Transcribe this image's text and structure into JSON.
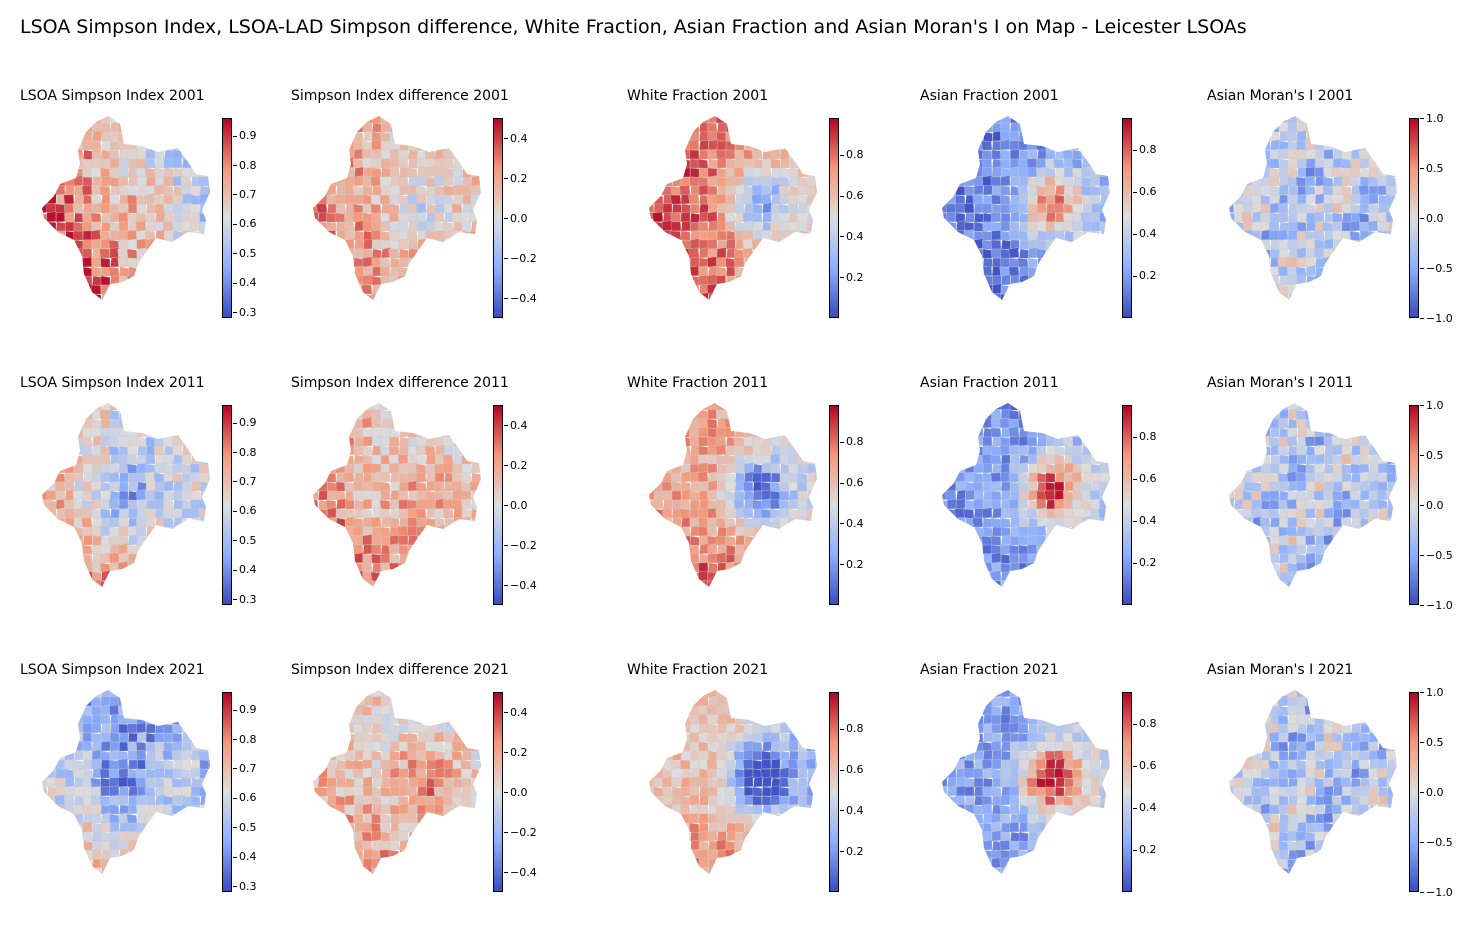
{
  "title": "LSOA Simpson Index, LSOA-LAD Simpson difference, White Fraction, Asian Fraction and Asian Moran's I on Map - Leicester LSOAs",
  "colormap": {
    "name": "coolwarm",
    "low": "#3b4cc0",
    "mid": "#dddddd",
    "high": "#b40426"
  },
  "columns": [
    {
      "key": "simpson",
      "title_prefix": "LSOA Simpson Index",
      "range": [
        0.28,
        0.96
      ],
      "ticks": [
        "0.3",
        "0.4",
        "0.5",
        "0.6",
        "0.7",
        "0.8",
        "0.9"
      ],
      "tick_values": [
        0.3,
        0.4,
        0.5,
        0.6,
        0.7,
        0.8,
        0.9
      ]
    },
    {
      "key": "simpson_diff",
      "title_prefix": "Simpson Index difference",
      "range": [
        -0.5,
        0.5
      ],
      "ticks": [
        "−0.4",
        "−0.2",
        "0.0",
        "0.2",
        "0.4"
      ],
      "tick_values": [
        -0.4,
        -0.2,
        0.0,
        0.2,
        0.4
      ]
    },
    {
      "key": "white_frac",
      "title_prefix": "White Fraction",
      "range": [
        0.0,
        0.98
      ],
      "ticks": [
        "0.2",
        "0.4",
        "0.6",
        "0.8"
      ],
      "tick_values": [
        0.2,
        0.4,
        0.6,
        0.8
      ]
    },
    {
      "key": "asian_frac",
      "title_prefix": "Asian Fraction",
      "range": [
        0.0,
        0.95
      ],
      "ticks": [
        "0.2",
        "0.4",
        "0.6",
        "0.8"
      ],
      "tick_values": [
        0.2,
        0.4,
        0.6,
        0.8
      ]
    },
    {
      "key": "asian_morans_i",
      "title_prefix": "Asian Moran's I",
      "range": [
        -1.0,
        1.0
      ],
      "ticks": [
        "−1.0",
        "−0.5",
        "0.0",
        "0.5",
        "1.0"
      ],
      "tick_values": [
        -1.0,
        -0.5,
        0.0,
        0.5,
        1.0
      ]
    }
  ],
  "years": [
    "2001",
    "2011",
    "2021"
  ],
  "panels": [
    {
      "row": 0,
      "col": 0,
      "title": "LSOA Simpson Index 2001"
    },
    {
      "row": 0,
      "col": 1,
      "title": "Simpson Index difference 2001"
    },
    {
      "row": 0,
      "col": 2,
      "title": "White Fraction 2001"
    },
    {
      "row": 0,
      "col": 3,
      "title": "Asian Fraction 2001"
    },
    {
      "row": 0,
      "col": 4,
      "title": "Asian Moran's I 2001"
    },
    {
      "row": 1,
      "col": 0,
      "title": "LSOA Simpson Index 2011"
    },
    {
      "row": 1,
      "col": 1,
      "title": "Simpson Index difference 2011"
    },
    {
      "row": 1,
      "col": 2,
      "title": "White Fraction 2011"
    },
    {
      "row": 1,
      "col": 3,
      "title": "Asian Fraction 2011"
    },
    {
      "row": 1,
      "col": 4,
      "title": "Asian Moran's I 2011"
    },
    {
      "row": 2,
      "col": 0,
      "title": "LSOA Simpson Index 2021"
    },
    {
      "row": 2,
      "col": 1,
      "title": "Simpson Index difference 2021"
    },
    {
      "row": 2,
      "col": 2,
      "title": "White Fraction 2021"
    },
    {
      "row": 2,
      "col": 3,
      "title": "Asian Fraction 2021"
    },
    {
      "row": 2,
      "col": 4,
      "title": "Asian Moran's I 2021"
    }
  ]
}
